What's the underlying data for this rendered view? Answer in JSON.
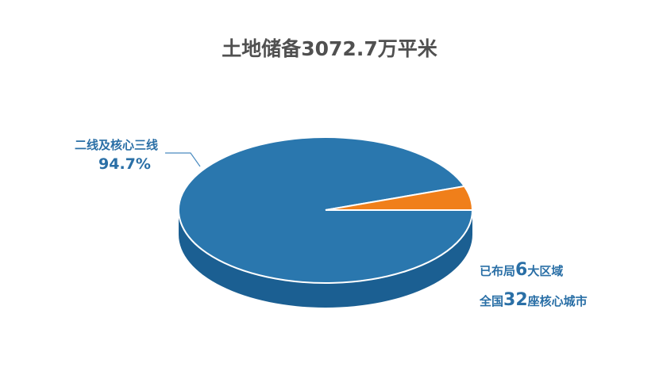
{
  "title": "土地储备3072.7万平米",
  "chart_data": {
    "type": "pie",
    "title": "土地储备3072.7万平米",
    "style": "3d",
    "categories": [
      "二线及核心三线",
      ""
    ],
    "values": [
      94.7,
      5.3
    ],
    "colors": [
      "#2a77ae",
      "#f07f1a"
    ],
    "labels": [
      {
        "name": "二线及核心三线",
        "value_label": "94.7%"
      }
    ]
  },
  "annotations": {
    "line1_pre": "已布局",
    "line1_num": "6",
    "line1_post": "大区域",
    "line2_pre": "全国",
    "line2_num": "32",
    "line2_post": "座核心城市"
  }
}
